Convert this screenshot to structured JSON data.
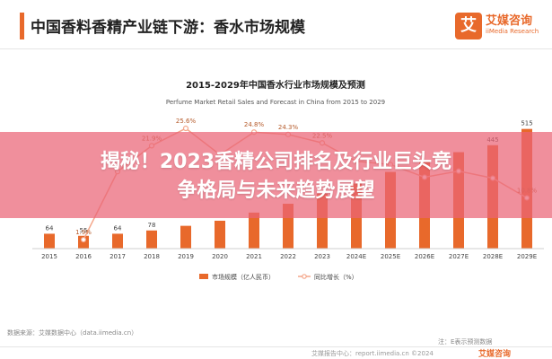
{
  "header": {
    "title": "中国香料香精产业链下游：香水市场规模",
    "logo_mark": "艾",
    "logo_cn": "艾媒咨询",
    "logo_en": "iiMedia Research"
  },
  "overlay": {
    "line1": "揭秘！2023香精公司排名及行业巨头竞",
    "line2": "争格局与未来趋势展望"
  },
  "chart_data": {
    "type": "bar",
    "title": "2015-2029年中国香水行业市场规模及预测",
    "subtitle": "Perfume Market Retail Sales and Forecast in China from 2015 to 2029",
    "categories": [
      "2015",
      "2016",
      "2017",
      "2018",
      "2019",
      "2020",
      "2021",
      "2022",
      "2023",
      "2024E",
      "2025E",
      "2026E",
      "2027E",
      "2028E",
      "2029E"
    ],
    "series": [
      {
        "name": "市场规模（亿人民币）",
        "type": "bar",
        "color": "#e8692b",
        "values": [
          64,
          55,
          64,
          78,
          98,
          120,
          155,
          193,
          236,
          280,
          330,
          380,
          415,
          445,
          515
        ]
      },
      {
        "name": "同比增长（%）",
        "type": "line",
        "color": "#f4a78b",
        "values": [
          null,
          1.9,
          16.4,
          21.9,
          25.6,
          20.0,
          24.8,
          24.3,
          22.5,
          18.6,
          17.9,
          15.2,
          16.5,
          15.0,
          10.8
        ]
      }
    ],
    "bar_labels": [
      "64",
      "55",
      "64",
      "78",
      "",
      "",
      "",
      "",
      "",
      "",
      "",
      "",
      "",
      "445",
      "515"
    ],
    "line_labels": [
      "",
      "1.9%",
      "",
      "21.9%",
      "25.6%",
      "",
      "24.8%",
      "24.3%",
      "22.5%",
      "",
      "",
      "",
      "",
      "",
      "10.8%"
    ],
    "ylim_bar": [
      0,
      560
    ],
    "ylim_line": [
      0,
      30
    ],
    "legend_position": "bottom",
    "grid": false
  },
  "source": "数据来源：艾媒数据中心（data.iimedia.cn）",
  "footnote": "注：E表示预测数据",
  "footer": {
    "report": "艾媒报告中心：report.iimedia.cn  ©2024",
    "logo": "艾媒咨询"
  }
}
